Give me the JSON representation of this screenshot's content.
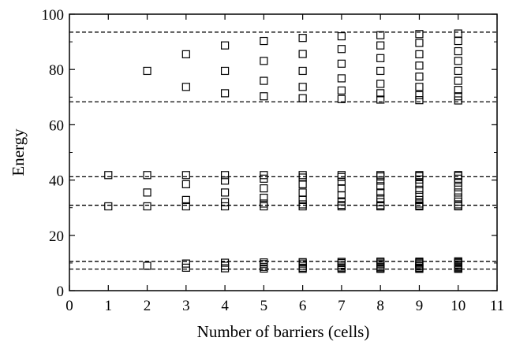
{
  "chart_data": {
    "type": "scatter",
    "title": "",
    "xlabel": "Number of barriers (cells)",
    "ylabel": "Energy",
    "xlim": [
      0,
      11
    ],
    "ylim": [
      0,
      100
    ],
    "xticks": [
      0,
      1,
      2,
      3,
      4,
      5,
      6,
      7,
      8,
      9,
      10,
      11
    ],
    "yticks": [
      0,
      20,
      40,
      60,
      80,
      100
    ],
    "grid": false,
    "legend": "none",
    "marker": "open-square",
    "colors": {
      "marker": "#000000",
      "reference_line": "#000000"
    },
    "reference_lines_y": [
      93.5,
      68.3,
      41.2,
      30.9,
      10.6,
      7.8
    ],
    "series": [
      {
        "points": [
          {
            "x": 1,
            "y": 41.8
          },
          {
            "x": 1,
            "y": 30.5
          },
          {
            "x": 2,
            "y": 79.5
          },
          {
            "x": 2,
            "y": 41.8
          },
          {
            "x": 2,
            "y": 35.5
          },
          {
            "x": 2,
            "y": 30.5
          },
          {
            "x": 2,
            "y": 9.0
          },
          {
            "x": 3,
            "y": 85.5
          },
          {
            "x": 3,
            "y": 73.7
          },
          {
            "x": 3,
            "y": 41.8
          },
          {
            "x": 3,
            "y": 38.5
          },
          {
            "x": 3,
            "y": 32.8
          },
          {
            "x": 3,
            "y": 30.5
          },
          {
            "x": 3,
            "y": 9.8
          },
          {
            "x": 3,
            "y": 8.3
          },
          {
            "x": 4,
            "y": 88.7
          },
          {
            "x": 4,
            "y": 79.5
          },
          {
            "x": 4,
            "y": 71.4
          },
          {
            "x": 4,
            "y": 41.8
          },
          {
            "x": 4,
            "y": 39.8
          },
          {
            "x": 4,
            "y": 35.5
          },
          {
            "x": 4,
            "y": 32.0
          },
          {
            "x": 4,
            "y": 30.5
          },
          {
            "x": 4,
            "y": 10.1
          },
          {
            "x": 4,
            "y": 9.0
          },
          {
            "x": 4,
            "y": 8.1
          },
          {
            "x": 5,
            "y": 90.3
          },
          {
            "x": 5,
            "y": 83.1
          },
          {
            "x": 5,
            "y": 75.9
          },
          {
            "x": 5,
            "y": 70.3
          },
          {
            "x": 5,
            "y": 41.8
          },
          {
            "x": 5,
            "y": 40.5
          },
          {
            "x": 5,
            "y": 37.0
          },
          {
            "x": 5,
            "y": 33.6
          },
          {
            "x": 5,
            "y": 31.5
          },
          {
            "x": 5,
            "y": 30.5
          },
          {
            "x": 5,
            "y": 10.2
          },
          {
            "x": 5,
            "y": 9.6
          },
          {
            "x": 5,
            "y": 8.6
          },
          {
            "x": 5,
            "y": 8.0
          },
          {
            "x": 6,
            "y": 91.4
          },
          {
            "x": 6,
            "y": 85.6
          },
          {
            "x": 6,
            "y": 79.5
          },
          {
            "x": 6,
            "y": 73.7
          },
          {
            "x": 6,
            "y": 69.6
          },
          {
            "x": 6,
            "y": 41.8
          },
          {
            "x": 6,
            "y": 40.9
          },
          {
            "x": 6,
            "y": 38.5
          },
          {
            "x": 6,
            "y": 35.5
          },
          {
            "x": 6,
            "y": 32.8
          },
          {
            "x": 6,
            "y": 31.2
          },
          {
            "x": 6,
            "y": 30.5
          },
          {
            "x": 6,
            "y": 10.3
          },
          {
            "x": 6,
            "y": 9.8
          },
          {
            "x": 6,
            "y": 9.0
          },
          {
            "x": 6,
            "y": 8.3
          },
          {
            "x": 6,
            "y": 7.9
          },
          {
            "x": 7,
            "y": 92.0
          },
          {
            "x": 7,
            "y": 87.4
          },
          {
            "x": 7,
            "y": 82.1
          },
          {
            "x": 7,
            "y": 76.8
          },
          {
            "x": 7,
            "y": 72.4
          },
          {
            "x": 7,
            "y": 69.3
          },
          {
            "x": 7,
            "y": 41.8
          },
          {
            "x": 7,
            "y": 41.1
          },
          {
            "x": 7,
            "y": 39.4
          },
          {
            "x": 7,
            "y": 37.0
          },
          {
            "x": 7,
            "y": 34.5
          },
          {
            "x": 7,
            "y": 32.3
          },
          {
            "x": 7,
            "y": 31.0
          },
          {
            "x": 7,
            "y": 30.5
          },
          {
            "x": 7,
            "y": 10.4
          },
          {
            "x": 7,
            "y": 10.0
          },
          {
            "x": 7,
            "y": 9.4
          },
          {
            "x": 7,
            "y": 8.7
          },
          {
            "x": 7,
            "y": 8.2
          },
          {
            "x": 7,
            "y": 7.9
          },
          {
            "x": 8,
            "y": 92.4
          },
          {
            "x": 8,
            "y": 88.7
          },
          {
            "x": 8,
            "y": 84.1
          },
          {
            "x": 8,
            "y": 79.5
          },
          {
            "x": 8,
            "y": 74.8
          },
          {
            "x": 8,
            "y": 71.4
          },
          {
            "x": 8,
            "y": 69.1
          },
          {
            "x": 8,
            "y": 41.8
          },
          {
            "x": 8,
            "y": 41.3
          },
          {
            "x": 8,
            "y": 39.8
          },
          {
            "x": 8,
            "y": 37.8
          },
          {
            "x": 8,
            "y": 35.5
          },
          {
            "x": 8,
            "y": 33.4
          },
          {
            "x": 8,
            "y": 32.0
          },
          {
            "x": 8,
            "y": 30.9
          },
          {
            "x": 8,
            "y": 30.5
          },
          {
            "x": 8,
            "y": 10.5
          },
          {
            "x": 8,
            "y": 10.1
          },
          {
            "x": 8,
            "y": 9.6
          },
          {
            "x": 8,
            "y": 9.0
          },
          {
            "x": 8,
            "y": 8.5
          },
          {
            "x": 8,
            "y": 8.1
          },
          {
            "x": 8,
            "y": 7.9
          },
          {
            "x": 9,
            "y": 92.8
          },
          {
            "x": 9,
            "y": 89.6
          },
          {
            "x": 9,
            "y": 85.5
          },
          {
            "x": 9,
            "y": 81.4
          },
          {
            "x": 9,
            "y": 77.4
          },
          {
            "x": 9,
            "y": 73.7
          },
          {
            "x": 9,
            "y": 70.7
          },
          {
            "x": 9,
            "y": 68.9
          },
          {
            "x": 9,
            "y": 41.8
          },
          {
            "x": 9,
            "y": 41.4
          },
          {
            "x": 9,
            "y": 40.2
          },
          {
            "x": 9,
            "y": 38.5
          },
          {
            "x": 9,
            "y": 36.5
          },
          {
            "x": 9,
            "y": 34.5
          },
          {
            "x": 9,
            "y": 32.8
          },
          {
            "x": 9,
            "y": 31.5
          },
          {
            "x": 9,
            "y": 30.8
          },
          {
            "x": 9,
            "y": 30.5
          },
          {
            "x": 9,
            "y": 10.5
          },
          {
            "x": 9,
            "y": 10.2
          },
          {
            "x": 9,
            "y": 9.8
          },
          {
            "x": 9,
            "y": 9.3
          },
          {
            "x": 9,
            "y": 8.8
          },
          {
            "x": 9,
            "y": 8.3
          },
          {
            "x": 9,
            "y": 8.0
          },
          {
            "x": 9,
            "y": 7.9
          },
          {
            "x": 10,
            "y": 93.0
          },
          {
            "x": 10,
            "y": 90.3
          },
          {
            "x": 10,
            "y": 86.6
          },
          {
            "x": 10,
            "y": 83.1
          },
          {
            "x": 10,
            "y": 79.5
          },
          {
            "x": 10,
            "y": 75.9
          },
          {
            "x": 10,
            "y": 72.6
          },
          {
            "x": 10,
            "y": 70.3
          },
          {
            "x": 10,
            "y": 68.8
          },
          {
            "x": 10,
            "y": 41.8
          },
          {
            "x": 10,
            "y": 41.5
          },
          {
            "x": 10,
            "y": 40.5
          },
          {
            "x": 10,
            "y": 39.1
          },
          {
            "x": 10,
            "y": 37.4
          },
          {
            "x": 10,
            "y": 35.5
          },
          {
            "x": 10,
            "y": 33.7
          },
          {
            "x": 10,
            "y": 32.2
          },
          {
            "x": 10,
            "y": 31.2
          },
          {
            "x": 10,
            "y": 30.6
          },
          {
            "x": 10,
            "y": 30.5
          },
          {
            "x": 10,
            "y": 10.6
          },
          {
            "x": 10,
            "y": 10.3
          },
          {
            "x": 10,
            "y": 9.9
          },
          {
            "x": 10,
            "y": 9.4
          },
          {
            "x": 10,
            "y": 9.0
          },
          {
            "x": 10,
            "y": 8.6
          },
          {
            "x": 10,
            "y": 8.2
          },
          {
            "x": 10,
            "y": 8.0
          },
          {
            "x": 10,
            "y": 7.9
          }
        ]
      }
    ]
  }
}
